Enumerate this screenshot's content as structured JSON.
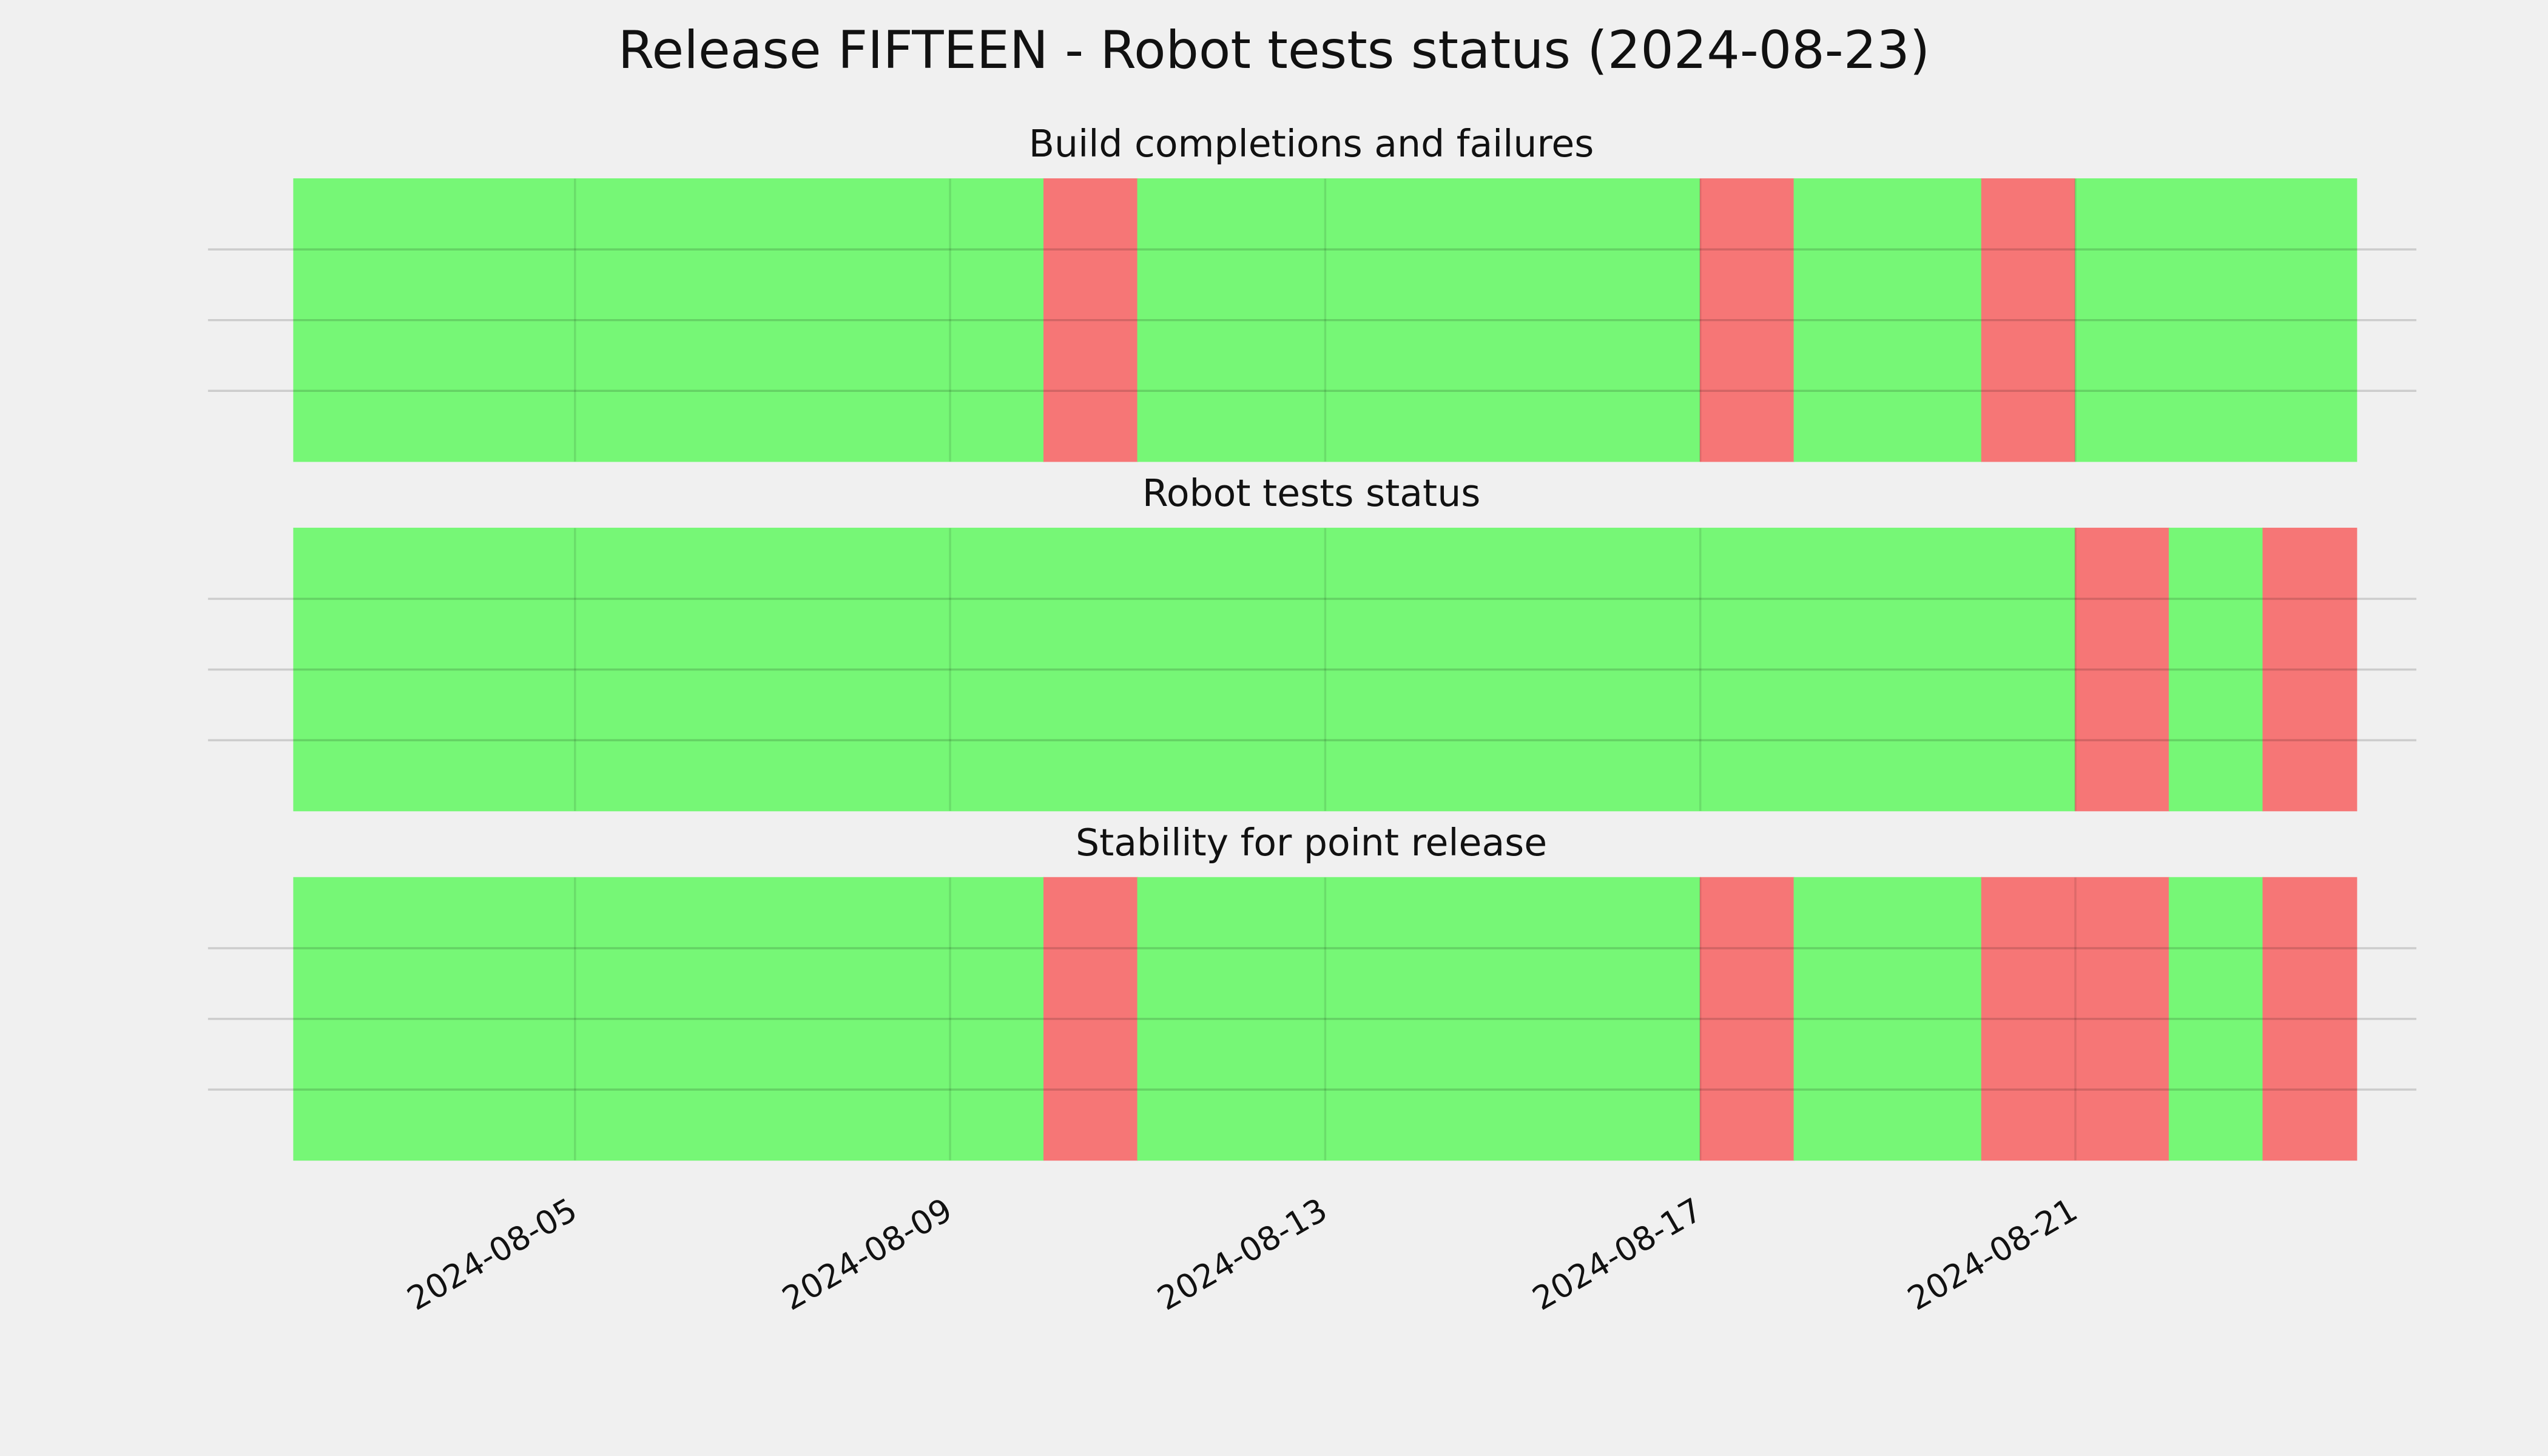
{
  "title": "Release FIFTEEN - Robot tests status (2024-08-23)",
  "chart_data": [
    {
      "type": "span",
      "title": "Build completions and failures",
      "xlim": [
        "2024-08-01",
        "2024-08-25"
      ],
      "ylim": [
        0,
        1
      ],
      "yticks": [
        0.25,
        0.5,
        0.75
      ],
      "grid": true,
      "spans": [
        {
          "start": "2024-08-02",
          "end": "2024-08-10",
          "color": "#76f776"
        },
        {
          "start": "2024-08-10",
          "end": "2024-08-11",
          "color": "#f67676"
        },
        {
          "start": "2024-08-11",
          "end": "2024-08-17",
          "color": "#76f776"
        },
        {
          "start": "2024-08-17",
          "end": "2024-08-18",
          "color": "#f67676"
        },
        {
          "start": "2024-08-18",
          "end": "2024-08-20",
          "color": "#76f776"
        },
        {
          "start": "2024-08-20",
          "end": "2024-08-21",
          "color": "#f67676"
        },
        {
          "start": "2024-08-21",
          "end": "2024-08-24",
          "color": "#76f776"
        }
      ]
    },
    {
      "type": "span",
      "title": "Robot tests status",
      "xlim": [
        "2024-08-01",
        "2024-08-25"
      ],
      "ylim": [
        0,
        1
      ],
      "yticks": [
        0.25,
        0.5,
        0.75
      ],
      "grid": true,
      "spans": [
        {
          "start": "2024-08-02",
          "end": "2024-08-21",
          "color": "#76f776"
        },
        {
          "start": "2024-08-21",
          "end": "2024-08-22",
          "color": "#f67676"
        },
        {
          "start": "2024-08-22",
          "end": "2024-08-23",
          "color": "#76f776"
        },
        {
          "start": "2024-08-23",
          "end": "2024-08-24",
          "color": "#f67676"
        }
      ]
    },
    {
      "type": "span",
      "title": "Stability for point release",
      "xlim": [
        "2024-08-01",
        "2024-08-25"
      ],
      "ylim": [
        0,
        1
      ],
      "yticks": [
        0.25,
        0.5,
        0.75
      ],
      "grid": true,
      "xticks": [
        "2024-08-05",
        "2024-08-09",
        "2024-08-13",
        "2024-08-17",
        "2024-08-21"
      ],
      "spans": [
        {
          "start": "2024-08-02",
          "end": "2024-08-10",
          "color": "#76f776"
        },
        {
          "start": "2024-08-10",
          "end": "2024-08-11",
          "color": "#f67676"
        },
        {
          "start": "2024-08-11",
          "end": "2024-08-17",
          "color": "#76f776"
        },
        {
          "start": "2024-08-17",
          "end": "2024-08-18",
          "color": "#f67676"
        },
        {
          "start": "2024-08-18",
          "end": "2024-08-20",
          "color": "#76f776"
        },
        {
          "start": "2024-08-20",
          "end": "2024-08-22",
          "color": "#f67676"
        },
        {
          "start": "2024-08-22",
          "end": "2024-08-23",
          "color": "#76f776"
        },
        {
          "start": "2024-08-23",
          "end": "2024-08-24",
          "color": "#f67676"
        }
      ]
    }
  ]
}
